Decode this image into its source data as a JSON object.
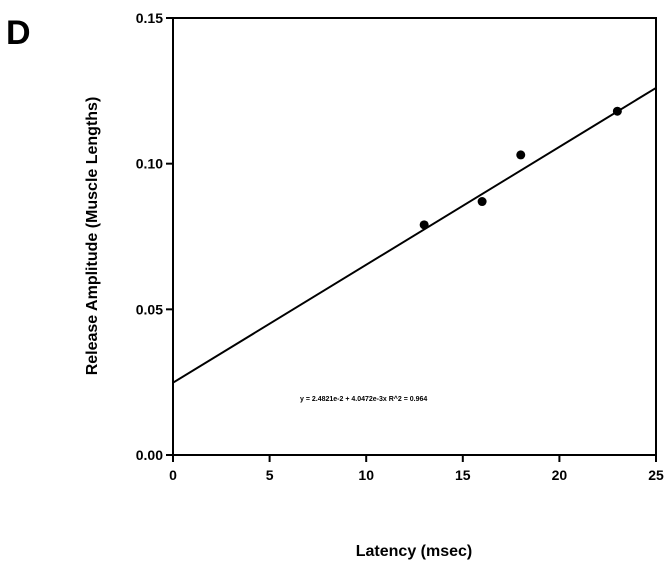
{
  "panel_label": "D",
  "chart_data": {
    "type": "scatter",
    "title": "",
    "xlabel": "Latency (msec)",
    "ylabel": "Release Amplitude (Muscle Lengths)",
    "xlim": [
      0,
      25
    ],
    "ylim": [
      0.0,
      0.15
    ],
    "x_ticks": [
      0,
      5,
      10,
      15,
      20,
      25
    ],
    "x_tick_labels": [
      "0",
      "5",
      "10",
      "15",
      "20",
      "25"
    ],
    "y_ticks": [
      0.0,
      0.05,
      0.1,
      0.15
    ],
    "y_tick_labels": [
      "0.00",
      "0.05",
      "0.10",
      "0.15"
    ],
    "grid": false,
    "series": [
      {
        "points": [
          {
            "x": 13,
            "y": 0.079
          },
          {
            "x": 16,
            "y": 0.087
          },
          {
            "x": 18,
            "y": 0.103
          },
          {
            "x": 23,
            "y": 0.118
          }
        ]
      }
    ],
    "fit_line": {
      "intercept": 0.024821,
      "slope": 0.0040472,
      "x_range": [
        0,
        25
      ]
    },
    "annotation": "y = 2.4821e-2 + 4.0472e-3x     R^2 = 0.964"
  }
}
